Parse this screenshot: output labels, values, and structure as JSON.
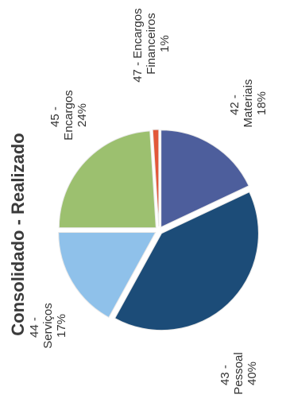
{
  "chart_data": {
    "type": "pie",
    "title": "Consolidado - Realizado",
    "categories": [
      "42 - Materiais",
      "43 - Pessoal",
      "44 - Serviços",
      "45 - Encargos",
      "47 - Encargos Financeiros"
    ],
    "values": [
      18,
      40,
      17,
      24,
      1
    ],
    "value_labels": [
      "18%",
      "40%",
      "17%",
      "24%",
      "1%"
    ],
    "colors": [
      "#4d5e9c",
      "#1c4c78",
      "#8fc1ea",
      "#9cc06f",
      "#e2583a"
    ]
  }
}
